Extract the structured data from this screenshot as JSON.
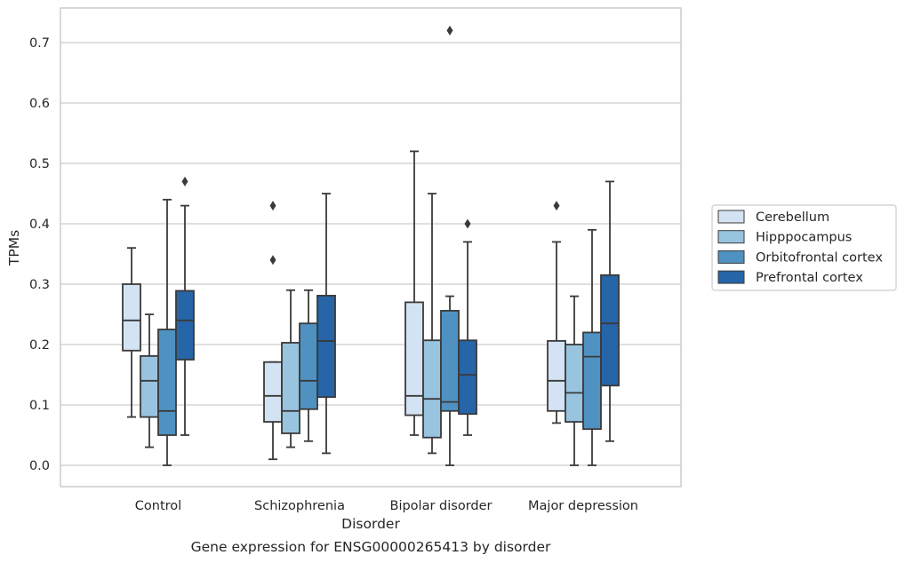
{
  "chart_data": {
    "type": "box",
    "title": "Gene expression for ENSG00000265413 by disorder",
    "xlabel": "Disorder",
    "ylabel": "TPMs",
    "ylim": [
      -0.035,
      0.757
    ],
    "yticks": [
      0.0,
      0.1,
      0.2,
      0.3,
      0.4,
      0.5,
      0.6,
      0.7
    ],
    "ytick_labels": [
      "0.0",
      "0.1",
      "0.2",
      "0.3",
      "0.4",
      "0.5",
      "0.6",
      "0.7"
    ],
    "grid": "horizontal",
    "legend_position": "right",
    "categories": [
      "Control",
      "Schizophrenia",
      "Bipolar disorder",
      "Major depression"
    ],
    "series": [
      {
        "name": "Cerebellum",
        "color": "#d4e3f3",
        "boxes": [
          {
            "whisker_low": 0.08,
            "q1": 0.19,
            "median": 0.24,
            "q3": 0.3,
            "whisker_high": 0.36,
            "outliers": []
          },
          {
            "whisker_low": 0.01,
            "q1": 0.072,
            "median": 0.115,
            "q3": 0.171,
            "whisker_high": 0.171,
            "outliers": [
              0.34,
              0.43
            ]
          },
          {
            "whisker_low": 0.05,
            "q1": 0.083,
            "median": 0.115,
            "q3": 0.27,
            "whisker_high": 0.52,
            "outliers": []
          },
          {
            "whisker_low": 0.07,
            "q1": 0.09,
            "median": 0.14,
            "q3": 0.206,
            "whisker_high": 0.37,
            "outliers": [
              0.43
            ]
          }
        ]
      },
      {
        "name": "Hipppocampus",
        "color": "#98c4e0",
        "boxes": [
          {
            "whisker_low": 0.03,
            "q1": 0.08,
            "median": 0.14,
            "q3": 0.181,
            "whisker_high": 0.25,
            "outliers": []
          },
          {
            "whisker_low": 0.03,
            "q1": 0.053,
            "median": 0.09,
            "q3": 0.203,
            "whisker_high": 0.29,
            "outliers": []
          },
          {
            "whisker_low": 0.02,
            "q1": 0.046,
            "median": 0.11,
            "q3": 0.207,
            "whisker_high": 0.45,
            "outliers": []
          },
          {
            "whisker_low": 0.0,
            "q1": 0.072,
            "median": 0.12,
            "q3": 0.2,
            "whisker_high": 0.28,
            "outliers": []
          }
        ]
      },
      {
        "name": "Orbitofrontal cortex",
        "color": "#4f92c2",
        "boxes": [
          {
            "whisker_low": 0.0,
            "q1": 0.05,
            "median": 0.09,
            "q3": 0.225,
            "whisker_high": 0.44,
            "outliers": []
          },
          {
            "whisker_low": 0.04,
            "q1": 0.093,
            "median": 0.14,
            "q3": 0.235,
            "whisker_high": 0.29,
            "outliers": []
          },
          {
            "whisker_low": 0.0,
            "q1": 0.09,
            "median": 0.105,
            "q3": 0.256,
            "whisker_high": 0.28,
            "outliers": [
              0.72
            ]
          },
          {
            "whisker_low": 0.0,
            "q1": 0.06,
            "median": 0.18,
            "q3": 0.22,
            "whisker_high": 0.39,
            "outliers": []
          }
        ]
      },
      {
        "name": "Prefrontal cortex",
        "color": "#2565a8",
        "boxes": [
          {
            "whisker_low": 0.05,
            "q1": 0.175,
            "median": 0.24,
            "q3": 0.289,
            "whisker_high": 0.43,
            "outliers": [
              0.47
            ]
          },
          {
            "whisker_low": 0.02,
            "q1": 0.113,
            "median": 0.206,
            "q3": 0.281,
            "whisker_high": 0.45,
            "outliers": []
          },
          {
            "whisker_low": 0.05,
            "q1": 0.085,
            "median": 0.15,
            "q3": 0.207,
            "whisker_high": 0.37,
            "outliers": [
              0.4
            ]
          },
          {
            "whisker_low": 0.04,
            "q1": 0.132,
            "median": 0.235,
            "q3": 0.315,
            "whisker_high": 0.47,
            "outliers": []
          }
        ]
      }
    ],
    "colors": {
      "edge": "#3a3a3a",
      "grid": "#cccccc",
      "frame": "#cccccc"
    }
  }
}
